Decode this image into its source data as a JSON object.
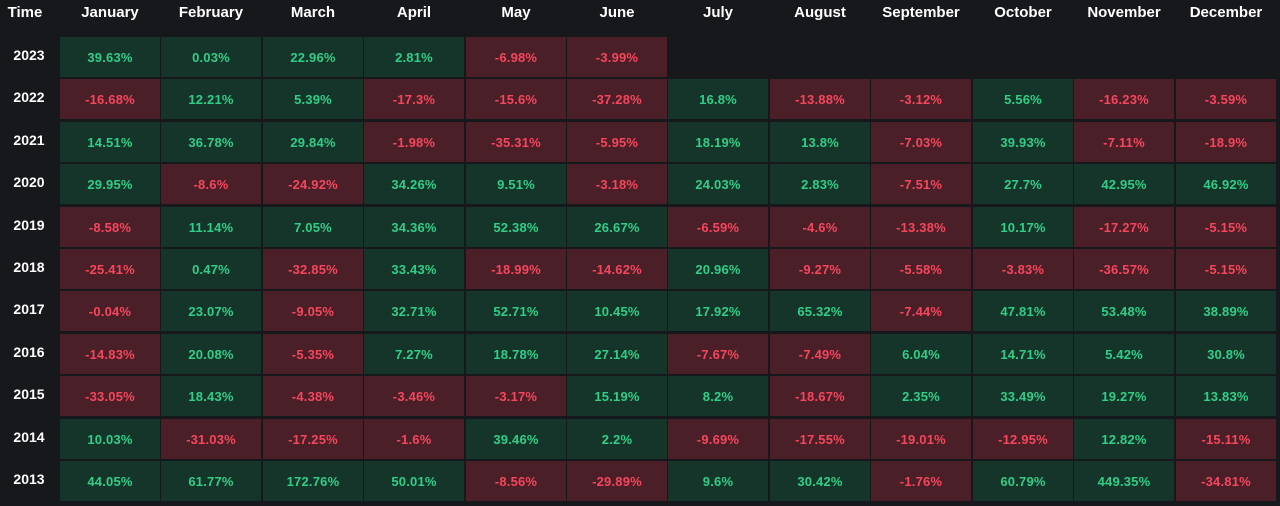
{
  "header": {
    "time_label": "Time",
    "months": [
      "January",
      "February",
      "March",
      "April",
      "May",
      "June",
      "July",
      "August",
      "September",
      "October",
      "November",
      "December"
    ]
  },
  "rows": [
    {
      "year": "2023",
      "values": [
        "39.63%",
        "0.03%",
        "22.96%",
        "2.81%",
        "-6.98%",
        "-3.99%",
        "",
        "",
        "",
        "",
        "",
        ""
      ]
    },
    {
      "year": "2022",
      "values": [
        "-16.68%",
        "12.21%",
        "5.39%",
        "-17.3%",
        "-15.6%",
        "-37.28%",
        "16.8%",
        "-13.88%",
        "-3.12%",
        "5.56%",
        "-16.23%",
        "-3.59%"
      ]
    },
    {
      "year": "2021",
      "values": [
        "14.51%",
        "36.78%",
        "29.84%",
        "-1.98%",
        "-35.31%",
        "-5.95%",
        "18.19%",
        "13.8%",
        "-7.03%",
        "39.93%",
        "-7.11%",
        "-18.9%"
      ]
    },
    {
      "year": "2020",
      "values": [
        "29.95%",
        "-8.6%",
        "-24.92%",
        "34.26%",
        "9.51%",
        "-3.18%",
        "24.03%",
        "2.83%",
        "-7.51%",
        "27.7%",
        "42.95%",
        "46.92%"
      ]
    },
    {
      "year": "2019",
      "values": [
        "-8.58%",
        "11.14%",
        "7.05%",
        "34.36%",
        "52.38%",
        "26.67%",
        "-6.59%",
        "-4.6%",
        "-13.38%",
        "10.17%",
        "-17.27%",
        "-5.15%"
      ]
    },
    {
      "year": "2018",
      "values": [
        "-25.41%",
        "0.47%",
        "-32.85%",
        "33.43%",
        "-18.99%",
        "-14.62%",
        "20.96%",
        "-9.27%",
        "-5.58%",
        "-3.83%",
        "-36.57%",
        "-5.15%"
      ]
    },
    {
      "year": "2017",
      "values": [
        "-0.04%",
        "23.07%",
        "-9.05%",
        "32.71%",
        "52.71%",
        "10.45%",
        "17.92%",
        "65.32%",
        "-7.44%",
        "47.81%",
        "53.48%",
        "38.89%"
      ]
    },
    {
      "year": "2016",
      "values": [
        "-14.83%",
        "20.08%",
        "-5.35%",
        "7.27%",
        "18.78%",
        "27.14%",
        "-7.67%",
        "-7.49%",
        "6.04%",
        "14.71%",
        "5.42%",
        "30.8%"
      ]
    },
    {
      "year": "2015",
      "values": [
        "-33.05%",
        "18.43%",
        "-4.38%",
        "-3.46%",
        "-3.17%",
        "15.19%",
        "8.2%",
        "-18.67%",
        "2.35%",
        "33.49%",
        "19.27%",
        "13.83%"
      ]
    },
    {
      "year": "2014",
      "values": [
        "10.03%",
        "-31.03%",
        "-17.25%",
        "-1.6%",
        "39.46%",
        "2.2%",
        "-9.69%",
        "-17.55%",
        "-19.01%",
        "-12.95%",
        "12.82%",
        "-15.11%"
      ]
    },
    {
      "year": "2013",
      "values": [
        "44.05%",
        "61.77%",
        "172.76%",
        "50.01%",
        "-8.56%",
        "-29.89%",
        "9.6%",
        "30.42%",
        "-1.76%",
        "60.79%",
        "449.35%",
        "-34.81%"
      ]
    }
  ],
  "colors": {
    "background": "#17181c",
    "positive_bg": "#15352b",
    "positive_text": "#2fcf86",
    "negative_bg": "#4a1f27",
    "negative_text": "#f6465d",
    "header_text": "#ffffff"
  }
}
